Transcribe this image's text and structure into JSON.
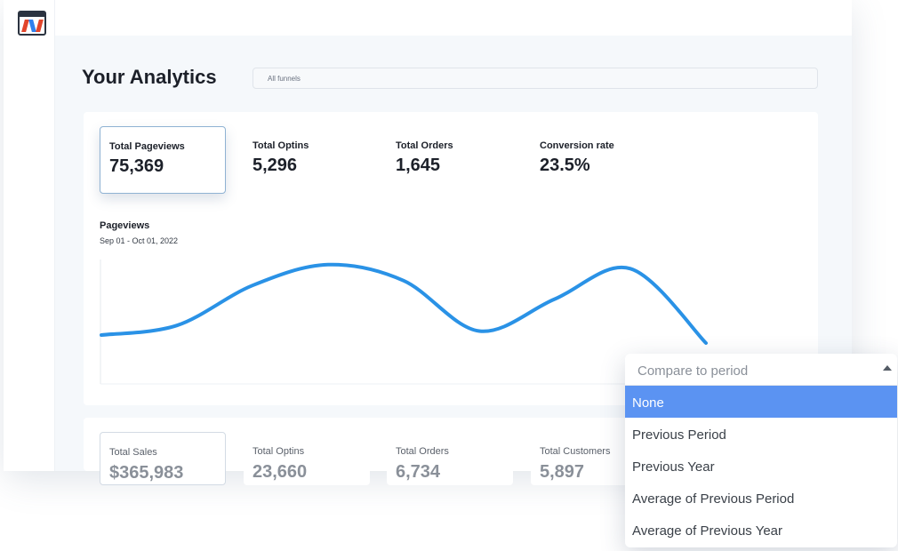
{
  "page": {
    "title": "Your Analytics"
  },
  "funnel_select": {
    "value": "All funnels"
  },
  "stats": [
    {
      "label": "Total Pageviews",
      "value": "75,369"
    },
    {
      "label": "Total Optins",
      "value": "5,296"
    },
    {
      "label": "Total Orders",
      "value": "1,645"
    },
    {
      "label": "Conversion rate",
      "value": "23.5%"
    }
  ],
  "chart": {
    "title": "Pageviews",
    "range": "Sep 01 - Oct 01, 2022",
    "line_color": "#2a92e6"
  },
  "chart_data": {
    "type": "line",
    "title": "Pageviews",
    "subtitle": "Sep 01 - Oct 01, 2022",
    "x": [
      0,
      1,
      2,
      3,
      4,
      5,
      6,
      7,
      8
    ],
    "series": [
      {
        "values": [
          0.1,
          0.22,
          0.72,
          0.98,
          0.78,
          0.15,
          0.55,
          0.93,
          0.0
        ]
      }
    ],
    "ylim": [
      0,
      1
    ],
    "grid": false
  },
  "bottom_stats": [
    {
      "label": "Total Sales",
      "value": "$365,983"
    },
    {
      "label": "Total Optins",
      "value": "23,660"
    },
    {
      "label": "Total Orders",
      "value": "6,734"
    },
    {
      "label": "Total Customers",
      "value": "5,897"
    }
  ],
  "compare_dropdown": {
    "placeholder": "Compare to period",
    "options": [
      "None",
      "Previous Period",
      "Previous Year",
      "Average of Previous Period",
      "Average of Previous Year"
    ],
    "selected": "None"
  },
  "colors": {
    "accent": "#2a92e6",
    "selected_option": "#5b93f2",
    "logo_red": "#e2462c",
    "logo_blue": "#2f80ed"
  }
}
